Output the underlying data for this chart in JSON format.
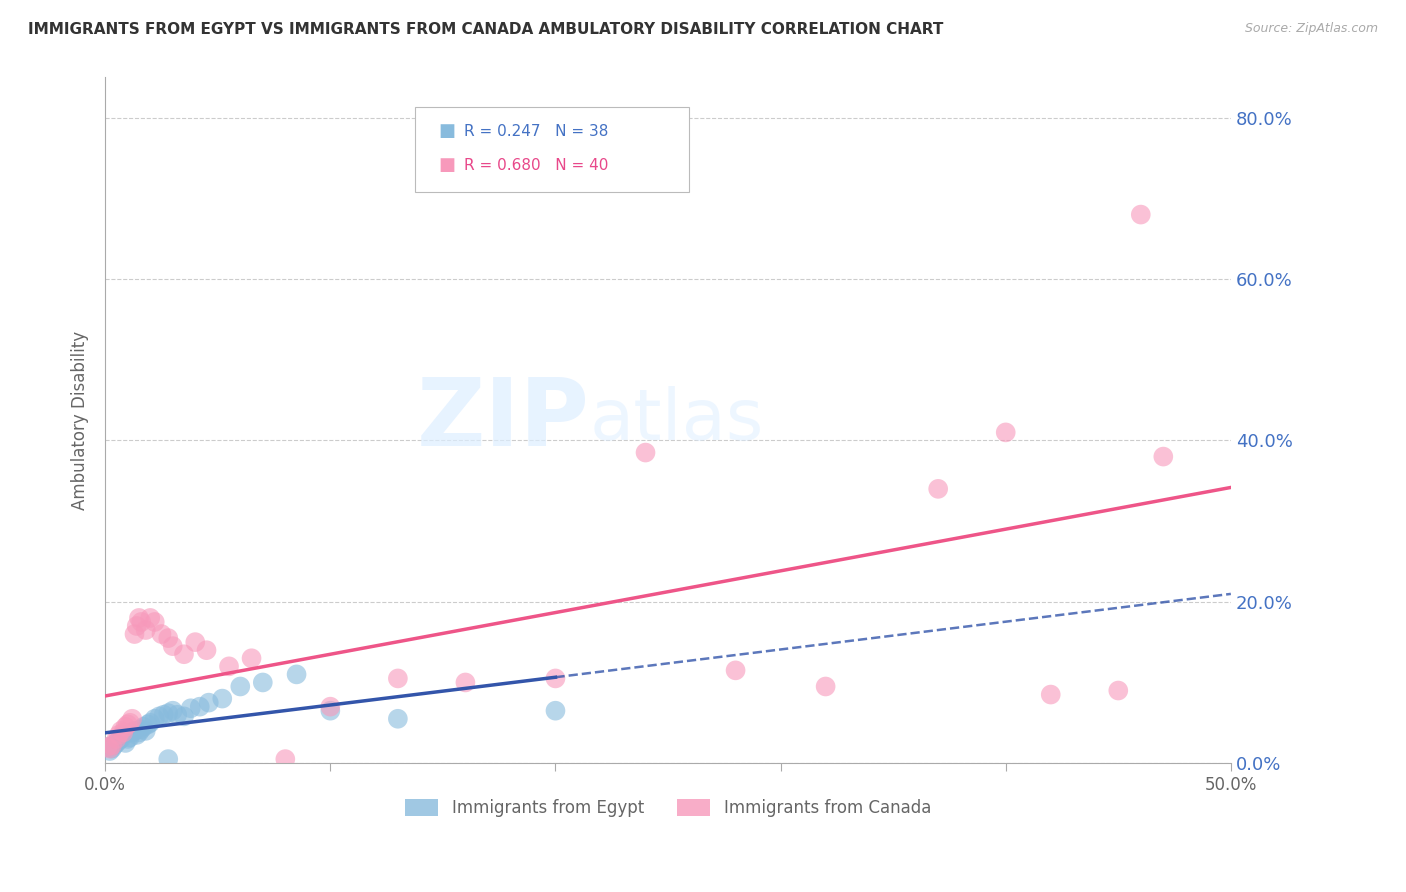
{
  "title": "IMMIGRANTS FROM EGYPT VS IMMIGRANTS FROM CANADA AMBULATORY DISABILITY CORRELATION CHART",
  "source": "Source: ZipAtlas.com",
  "ylabel": "Ambulatory Disability",
  "xlim": [
    0.0,
    0.5
  ],
  "ylim": [
    -0.02,
    0.85
  ],
  "plot_ylim": [
    0.0,
    0.85
  ],
  "egypt_color": "#88bbdd",
  "canada_color": "#f799bb",
  "egypt_line_color": "#3355aa",
  "canada_line_color": "#ee5588",
  "egypt_R": 0.247,
  "egypt_N": 38,
  "canada_R": 0.68,
  "canada_N": 40,
  "legend_label_egypt": "Immigrants from Egypt",
  "legend_label_canada": "Immigrants from Canada",
  "egypt_scatter_x": [
    0.001,
    0.002,
    0.003,
    0.004,
    0.005,
    0.006,
    0.007,
    0.008,
    0.009,
    0.01,
    0.011,
    0.012,
    0.013,
    0.014,
    0.015,
    0.016,
    0.017,
    0.018,
    0.019,
    0.02,
    0.022,
    0.024,
    0.026,
    0.028,
    0.03,
    0.032,
    0.035,
    0.038,
    0.042,
    0.046,
    0.052,
    0.06,
    0.07,
    0.085,
    0.1,
    0.13,
    0.028,
    0.2
  ],
  "egypt_scatter_y": [
    0.02,
    0.015,
    0.018,
    0.022,
    0.025,
    0.028,
    0.03,
    0.035,
    0.025,
    0.03,
    0.032,
    0.038,
    0.04,
    0.035,
    0.038,
    0.042,
    0.045,
    0.04,
    0.048,
    0.05,
    0.055,
    0.058,
    0.06,
    0.062,
    0.065,
    0.06,
    0.058,
    0.068,
    0.07,
    0.075,
    0.08,
    0.095,
    0.1,
    0.11,
    0.065,
    0.055,
    0.005,
    0.065
  ],
  "canada_scatter_x": [
    0.001,
    0.002,
    0.003,
    0.005,
    0.006,
    0.007,
    0.008,
    0.009,
    0.01,
    0.011,
    0.012,
    0.013,
    0.014,
    0.015,
    0.016,
    0.018,
    0.02,
    0.022,
    0.025,
    0.028,
    0.03,
    0.035,
    0.04,
    0.045,
    0.055,
    0.065,
    0.08,
    0.1,
    0.13,
    0.16,
    0.2,
    0.24,
    0.28,
    0.32,
    0.37,
    0.4,
    0.42,
    0.45,
    0.46,
    0.47
  ],
  "canada_scatter_y": [
    0.02,
    0.018,
    0.022,
    0.03,
    0.035,
    0.04,
    0.038,
    0.045,
    0.048,
    0.05,
    0.055,
    0.16,
    0.17,
    0.18,
    0.175,
    0.165,
    0.18,
    0.175,
    0.16,
    0.155,
    0.145,
    0.135,
    0.15,
    0.14,
    0.12,
    0.13,
    0.005,
    0.07,
    0.105,
    0.1,
    0.105,
    0.385,
    0.115,
    0.095,
    0.34,
    0.41,
    0.085,
    0.09,
    0.68,
    0.38
  ],
  "watermark": "ZIPatlas",
  "background_color": "#ffffff",
  "grid_color": "#cccccc",
  "title_color": "#333333",
  "axis_label_color": "#666666",
  "right_ytick_color": "#4472c4",
  "legend_r_egypt_color": "#4472c4",
  "legend_r_canada_color": "#e8488a",
  "ytick_vals": [
    0.0,
    0.2,
    0.4,
    0.6,
    0.8
  ],
  "ytick_labels": [
    "0.0%",
    "20.0%",
    "40.0%",
    "60.0%",
    "80.0%"
  ],
  "xtick_vals": [
    0.0,
    0.1,
    0.2,
    0.3,
    0.4,
    0.5
  ],
  "xtick_labels": [
    "0.0%",
    "",
    "",
    "",
    "",
    "50.0%"
  ]
}
